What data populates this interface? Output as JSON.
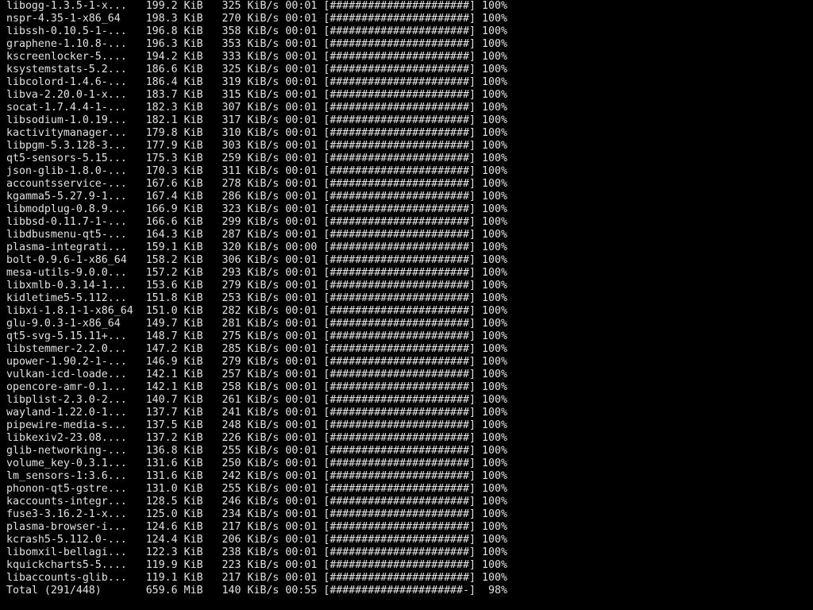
{
  "screen": {
    "background": "#000000",
    "foreground": "#e2e2e2"
  },
  "terminal": {
    "rows": [
      {
        "name": "libogg-1.3.5-1-x...",
        "size": "199.2 KiB",
        "rate": "325 KiB/s",
        "time": "00:01",
        "bar": "######################",
        "pct": "100%"
      },
      {
        "name": "nspr-4.35-1-x86_64",
        "size": "198.3 KiB",
        "rate": "270 KiB/s",
        "time": "00:01",
        "bar": "######################",
        "pct": "100%"
      },
      {
        "name": "libssh-0.10.5-1-...",
        "size": "196.8 KiB",
        "rate": "358 KiB/s",
        "time": "00:01",
        "bar": "######################",
        "pct": "100%"
      },
      {
        "name": "graphene-1.10.8-...",
        "size": "196.3 KiB",
        "rate": "353 KiB/s",
        "time": "00:01",
        "bar": "######################",
        "pct": "100%"
      },
      {
        "name": "kscreenlocker-5....",
        "size": "194.2 KiB",
        "rate": "333 KiB/s",
        "time": "00:01",
        "bar": "######################",
        "pct": "100%"
      },
      {
        "name": "ksystemstats-5.2...",
        "size": "186.6 KiB",
        "rate": "325 KiB/s",
        "time": "00:01",
        "bar": "######################",
        "pct": "100%"
      },
      {
        "name": "libcolord-1.4.6-...",
        "size": "186.4 KiB",
        "rate": "319 KiB/s",
        "time": "00:01",
        "bar": "######################",
        "pct": "100%"
      },
      {
        "name": "libva-2.20.0-1-x...",
        "size": "183.7 KiB",
        "rate": "315 KiB/s",
        "time": "00:01",
        "bar": "######################",
        "pct": "100%"
      },
      {
        "name": "socat-1.7.4.4-1-...",
        "size": "182.3 KiB",
        "rate": "307 KiB/s",
        "time": "00:01",
        "bar": "######################",
        "pct": "100%"
      },
      {
        "name": "libsodium-1.0.19...",
        "size": "182.1 KiB",
        "rate": "317 KiB/s",
        "time": "00:01",
        "bar": "######################",
        "pct": "100%"
      },
      {
        "name": "kactivitymanager...",
        "size": "179.8 KiB",
        "rate": "310 KiB/s",
        "time": "00:01",
        "bar": "######################",
        "pct": "100%"
      },
      {
        "name": "libpgm-5.3.128-3...",
        "size": "177.9 KiB",
        "rate": "303 KiB/s",
        "time": "00:01",
        "bar": "######################",
        "pct": "100%"
      },
      {
        "name": "qt5-sensors-5.15...",
        "size": "175.3 KiB",
        "rate": "259 KiB/s",
        "time": "00:01",
        "bar": "######################",
        "pct": "100%"
      },
      {
        "name": "json-glib-1.8.0-...",
        "size": "170.3 KiB",
        "rate": "311 KiB/s",
        "time": "00:01",
        "bar": "######################",
        "pct": "100%"
      },
      {
        "name": "accountsservice-...",
        "size": "167.6 KiB",
        "rate": "278 KiB/s",
        "time": "00:01",
        "bar": "######################",
        "pct": "100%"
      },
      {
        "name": "kgamma5-5.27.9-1...",
        "size": "167.4 KiB",
        "rate": "286 KiB/s",
        "time": "00:01",
        "bar": "######################",
        "pct": "100%"
      },
      {
        "name": "libmodplug-0.8.9...",
        "size": "166.9 KiB",
        "rate": "323 KiB/s",
        "time": "00:01",
        "bar": "######################",
        "pct": "100%"
      },
      {
        "name": "libbsd-0.11.7-1-...",
        "size": "166.6 KiB",
        "rate": "299 KiB/s",
        "time": "00:01",
        "bar": "######################",
        "pct": "100%"
      },
      {
        "name": "libdbusmenu-qt5-...",
        "size": "164.3 KiB",
        "rate": "287 KiB/s",
        "time": "00:01",
        "bar": "######################",
        "pct": "100%"
      },
      {
        "name": "plasma-integrati...",
        "size": "159.1 KiB",
        "rate": "320 KiB/s",
        "time": "00:00",
        "bar": "######################",
        "pct": "100%"
      },
      {
        "name": "bolt-0.9.6-1-x86_64",
        "size": "158.2 KiB",
        "rate": "306 KiB/s",
        "time": "00:01",
        "bar": "######################",
        "pct": "100%"
      },
      {
        "name": "mesa-utils-9.0.0...",
        "size": "157.2 KiB",
        "rate": "293 KiB/s",
        "time": "00:01",
        "bar": "######################",
        "pct": "100%"
      },
      {
        "name": "libxmlb-0.3.14-1...",
        "size": "153.6 KiB",
        "rate": "279 KiB/s",
        "time": "00:01",
        "bar": "######################",
        "pct": "100%"
      },
      {
        "name": "kidletime5-5.112...",
        "size": "151.8 KiB",
        "rate": "253 KiB/s",
        "time": "00:01",
        "bar": "######################",
        "pct": "100%"
      },
      {
        "name": "libxi-1.8.1-1-x86_64",
        "size": "151.0 KiB",
        "rate": "282 KiB/s",
        "time": "00:01",
        "bar": "######################",
        "pct": "100%"
      },
      {
        "name": "glu-9.0.3-1-x86_64",
        "size": "149.7 KiB",
        "rate": "281 KiB/s",
        "time": "00:01",
        "bar": "######################",
        "pct": "100%"
      },
      {
        "name": "qt5-svg-5.15.11+...",
        "size": "148.7 KiB",
        "rate": "275 KiB/s",
        "time": "00:01",
        "bar": "######################",
        "pct": "100%"
      },
      {
        "name": "libstemmer-2.2.0...",
        "size": "147.2 KiB",
        "rate": "285 KiB/s",
        "time": "00:01",
        "bar": "######################",
        "pct": "100%"
      },
      {
        "name": "upower-1.90.2-1-...",
        "size": "146.9 KiB",
        "rate": "279 KiB/s",
        "time": "00:01",
        "bar": "######################",
        "pct": "100%"
      },
      {
        "name": "vulkan-icd-loade...",
        "size": "142.1 KiB",
        "rate": "257 KiB/s",
        "time": "00:01",
        "bar": "######################",
        "pct": "100%"
      },
      {
        "name": "opencore-amr-0.1...",
        "size": "142.1 KiB",
        "rate": "258 KiB/s",
        "time": "00:01",
        "bar": "######################",
        "pct": "100%"
      },
      {
        "name": "libplist-2.3.0-2...",
        "size": "140.7 KiB",
        "rate": "261 KiB/s",
        "time": "00:01",
        "bar": "######################",
        "pct": "100%"
      },
      {
        "name": "wayland-1.22.0-1...",
        "size": "137.7 KiB",
        "rate": "241 KiB/s",
        "time": "00:01",
        "bar": "######################",
        "pct": "100%"
      },
      {
        "name": "pipewire-media-s...",
        "size": "137.5 KiB",
        "rate": "248 KiB/s",
        "time": "00:01",
        "bar": "######################",
        "pct": "100%"
      },
      {
        "name": "libkexiv2-23.08....",
        "size": "137.2 KiB",
        "rate": "226 KiB/s",
        "time": "00:01",
        "bar": "######################",
        "pct": "100%"
      },
      {
        "name": "glib-networking-...",
        "size": "136.8 KiB",
        "rate": "255 KiB/s",
        "time": "00:01",
        "bar": "######################",
        "pct": "100%"
      },
      {
        "name": "volume_key-0.3.1...",
        "size": "131.6 KiB",
        "rate": "250 KiB/s",
        "time": "00:01",
        "bar": "######################",
        "pct": "100%"
      },
      {
        "name": "lm_sensors-1:3.6...",
        "size": "131.6 KiB",
        "rate": "242 KiB/s",
        "time": "00:01",
        "bar": "######################",
        "pct": "100%"
      },
      {
        "name": "phonon-qt5-gstre...",
        "size": "131.0 KiB",
        "rate": "255 KiB/s",
        "time": "00:01",
        "bar": "######################",
        "pct": "100%"
      },
      {
        "name": "kaccounts-integr...",
        "size": "128.5 KiB",
        "rate": "246 KiB/s",
        "time": "00:01",
        "bar": "######################",
        "pct": "100%"
      },
      {
        "name": "fuse3-3.16.2-1-x...",
        "size": "125.0 KiB",
        "rate": "234 KiB/s",
        "time": "00:01",
        "bar": "######################",
        "pct": "100%"
      },
      {
        "name": "plasma-browser-i...",
        "size": "124.6 KiB",
        "rate": "217 KiB/s",
        "time": "00:01",
        "bar": "######################",
        "pct": "100%"
      },
      {
        "name": "kcrash5-5.112.0-...",
        "size": "124.4 KiB",
        "rate": "206 KiB/s",
        "time": "00:01",
        "bar": "######################",
        "pct": "100%"
      },
      {
        "name": "libomxil-bellagi...",
        "size": "122.3 KiB",
        "rate": "238 KiB/s",
        "time": "00:01",
        "bar": "######################",
        "pct": "100%"
      },
      {
        "name": "kquickcharts5-5....",
        "size": "119.9 KiB",
        "rate": "223 KiB/s",
        "time": "00:01",
        "bar": "######################",
        "pct": "100%"
      },
      {
        "name": "libaccounts-glib...",
        "size": "119.1 KiB",
        "rate": "217 KiB/s",
        "time": "00:01",
        "bar": "######################",
        "pct": "100%"
      },
      {
        "name": "Total (291/448)",
        "size": "659.6 MiB",
        "rate": "140 KiB/s",
        "time": "00:55",
        "bar": "#####################-",
        "pct": "98%",
        "total": true
      }
    ]
  }
}
